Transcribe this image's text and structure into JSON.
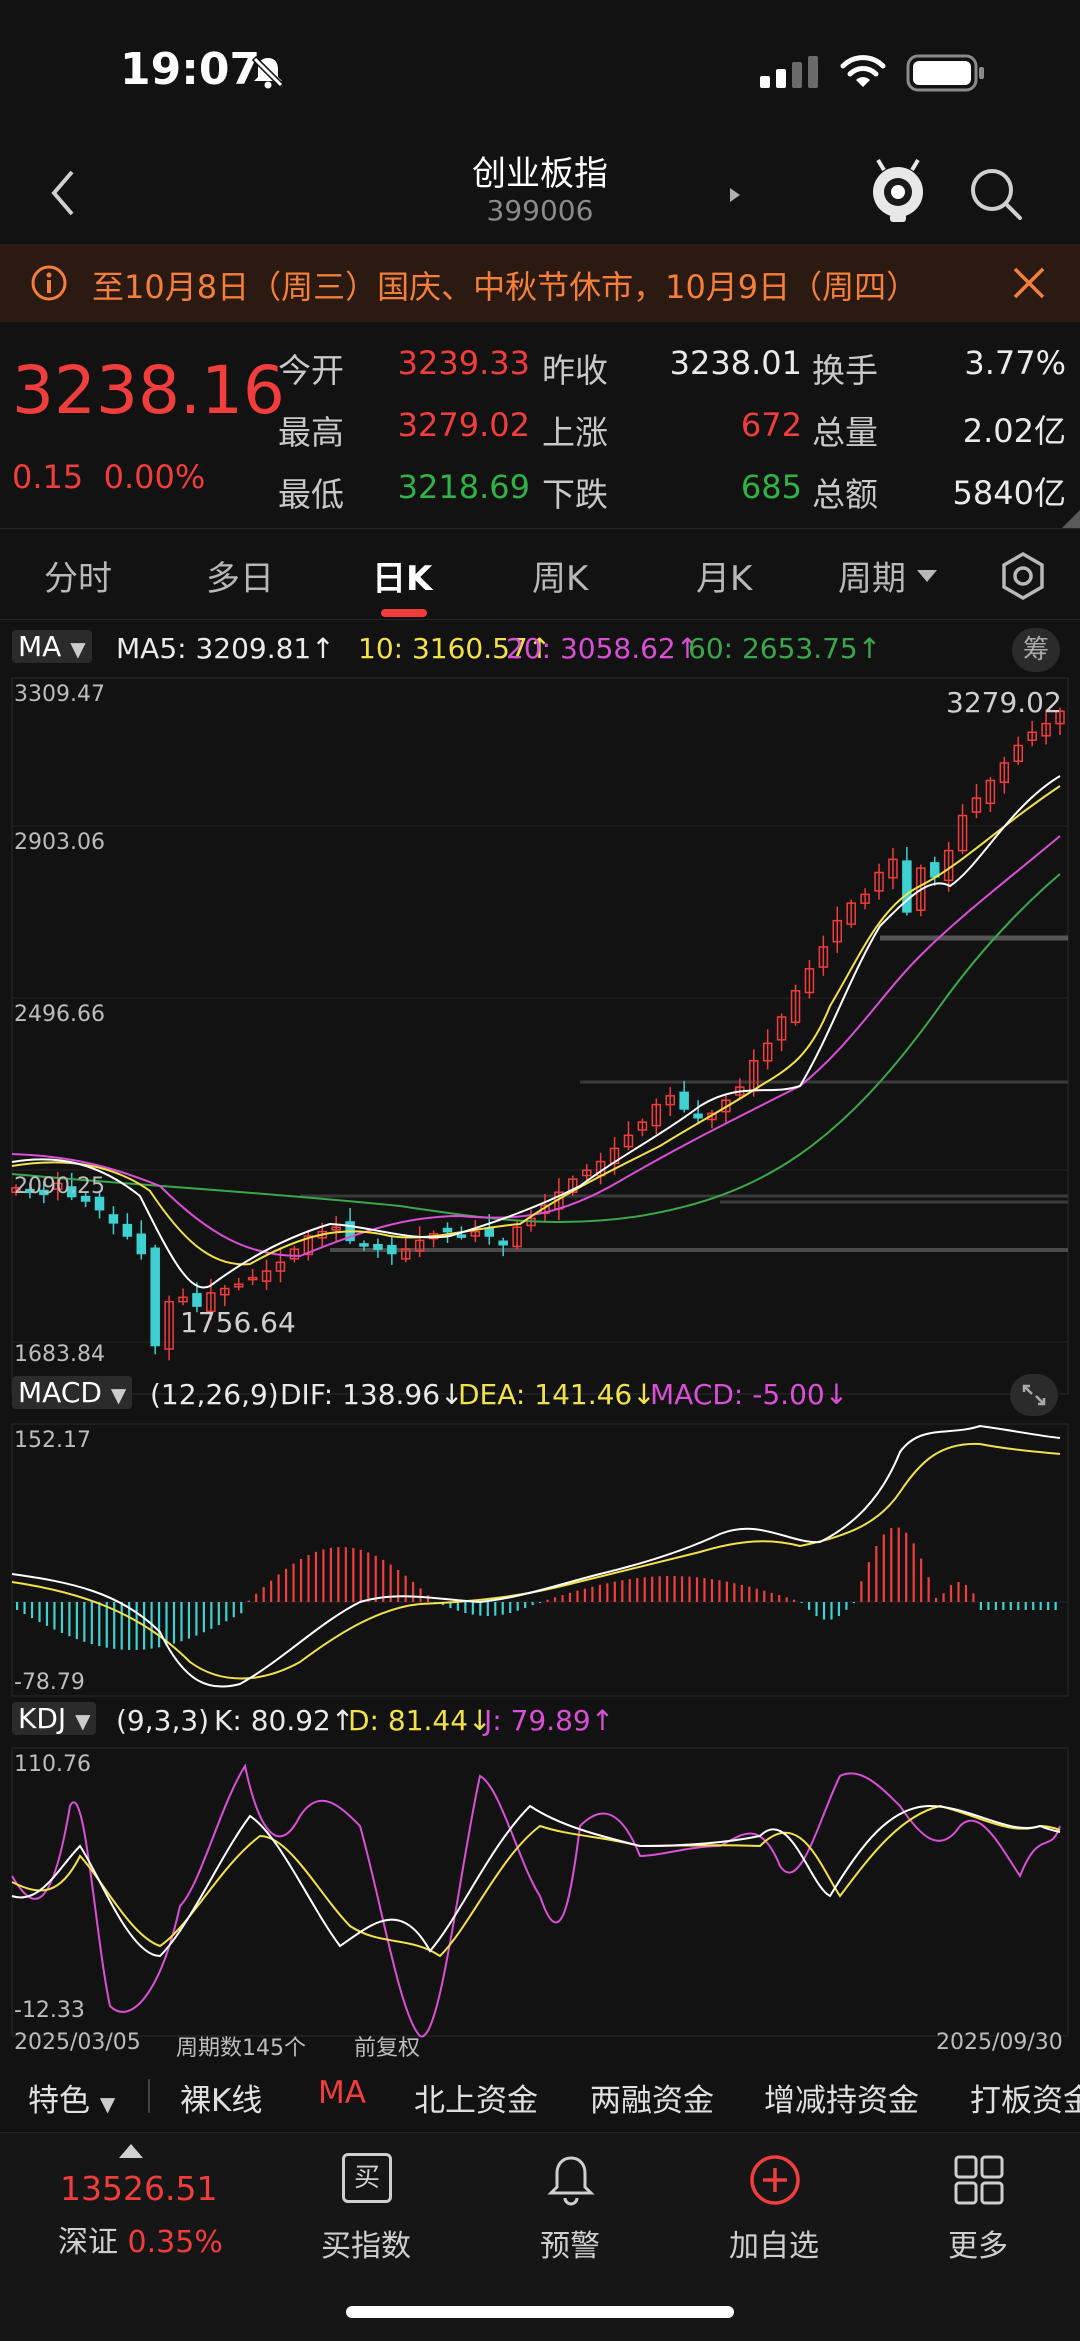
{
  "status_bar": {
    "time": "19:07"
  },
  "header": {
    "title": "创业板指",
    "code": "399006"
  },
  "notice": {
    "text": "至10月8日（周三）国庆、中秋节休市，10月9日（周四）"
  },
  "quote": {
    "price": "3238.16",
    "change": "0.15  0.00%",
    "rows": [
      {
        "l1": "今开",
        "v1": "3239.33",
        "l2": "昨收",
        "v2": "3238.01",
        "l3": "换手",
        "v3": "3.77%"
      },
      {
        "l1": "最高",
        "v1": "3279.02",
        "l2": "上涨",
        "v2": "672",
        "l3": "总量",
        "v3": "2.02亿"
      },
      {
        "l1": "最低",
        "v1": "3218.69",
        "l2": "下跌",
        "v2": "685",
        "l3": "总额",
        "v3": "5840亿"
      }
    ]
  },
  "tabs": [
    "分时",
    "多日",
    "日K",
    "周K",
    "月K",
    "周期"
  ],
  "chart": {
    "ma_legend": {
      "selector": "MA",
      "ma5": "MA5: 3209.81↑",
      "ma10": "10: 3160.57↑",
      "ma20": "20: 3058.62↑",
      "ma60": "60: 2653.75↑",
      "chip": "筹"
    },
    "price_axis": [
      "3309.47",
      "2903.06",
      "2496.66",
      "2090.25",
      "1683.84"
    ],
    "price_high_label": "3279.02",
    "price_low_label": "1756.64",
    "macd_legend": {
      "selector": "MACD",
      "params": "(12,26,9)",
      "dif": "DIF: 138.96↓",
      "dea": "DEA: 141.46↓",
      "macd": "MACD: -5.00↓"
    },
    "macd_axis": [
      "152.17",
      "-78.79"
    ],
    "kdj_legend": {
      "selector": "KDJ",
      "params": "(9,3,3)",
      "k": "K: 80.92↑",
      "d": "D: 81.44↓",
      "j": "J: 79.89↑"
    },
    "kdj_axis": [
      "110.76",
      "-12.33"
    ],
    "footer": {
      "start_date": "2025/03/05",
      "count": "周期数145个",
      "adjust": "前复权",
      "end_date": "2025/09/30"
    }
  },
  "chart_data": {
    "type": "candlestick",
    "x_start": "2025/03/05",
    "x_end": "2025/09/30",
    "periods": 145,
    "ylim": [
      1683.84,
      3309.47
    ],
    "close_path": [
      2150,
      2140,
      2135,
      2160,
      2130,
      2120,
      2100,
      2070,
      2040,
      2000,
      1790,
      1890,
      1900,
      1880,
      1910,
      1920,
      1930,
      1945,
      1960,
      1980,
      2010,
      2040,
      2050,
      2060,
      2030,
      2020,
      2010,
      2000,
      2010,
      2030,
      2045,
      2050,
      2040,
      2050,
      2040,
      2020,
      2060,
      2080,
      2110,
      2140,
      2170,
      2190,
      2210,
      2240,
      2270,
      2300,
      2340,
      2360,
      2330,
      2310,
      2320,
      2350,
      2380,
      2440,
      2480,
      2540,
      2600,
      2650,
      2700,
      2760,
      2800,
      2820,
      2870,
      2900,
      2780,
      2880,
      2860,
      2920,
      3000,
      3040,
      3080,
      3120,
      3160,
      3190,
      3210,
      3238.16
    ],
    "ma5": "3209.81",
    "ma10": "3160.57",
    "ma20": "3058.62",
    "ma60": "2653.75"
  },
  "feature_bar": [
    "特色",
    "裸K线",
    "MA",
    "北上资金",
    "两融资金",
    "增减持资金",
    "打板资金"
  ],
  "bottom_nav": {
    "index_value": "13526.51",
    "index_name": "深证",
    "index_change": "0.35%",
    "items": [
      "买指数",
      "预警",
      "加自选",
      "更多"
    ],
    "buy_glyph": "买"
  }
}
